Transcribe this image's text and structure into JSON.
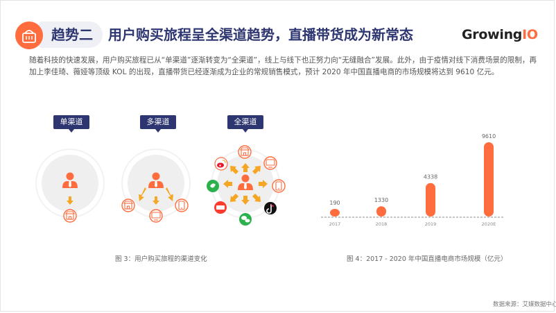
{
  "header": {
    "tag": "趋势二",
    "title": "用户购买旅程呈全渠道趋势，直播带货成为新常态",
    "logo_main": "Growing",
    "logo_accent": "IO",
    "badge_icon": "shopping-basket-icon"
  },
  "intro": "随着科技的快速发展，用户购买旅程已从“单渠道”逐渐转变为“全渠道”，线上与线下也正努力向“无缝融合”发展。此外，由于疫情对线下消费场景的限制，再加上李佳琦、薇娅等顶级 KOL 的出现，直播带货已经逐渐成为企业的常规销售模式，预计 2020 年中国直播电商的市场规模将达到 9610 亿元。",
  "figure3": {
    "labels": [
      "单渠道",
      "多渠道",
      "全渠道"
    ],
    "caption": "图 3：用户购买旅程的渠道变化",
    "icons": [
      "user-icon",
      "store-icon",
      "monitor-icon",
      "mobile-icon",
      "weibo-icon",
      "wechat-icon",
      "tiktok-icon",
      "taobao-icon"
    ]
  },
  "chart_data": {
    "type": "bar",
    "categories": [
      "2017",
      "2018",
      "2019",
      "2020E"
    ],
    "values": [
      190,
      1330,
      4338,
      9610
    ],
    "title": "",
    "xlabel": "",
    "ylabel": "",
    "grid": false,
    "bar_color": "#ff6c3d"
  },
  "figure4": {
    "caption": "图 4：2017 - 2020 年中国直播电商市场规模（亿元）"
  },
  "source": "数据来源：艾媒数据中心",
  "colors": {
    "accent": "#ff6c3d",
    "navy": "#2d3670",
    "arrow": "#f5a623"
  }
}
